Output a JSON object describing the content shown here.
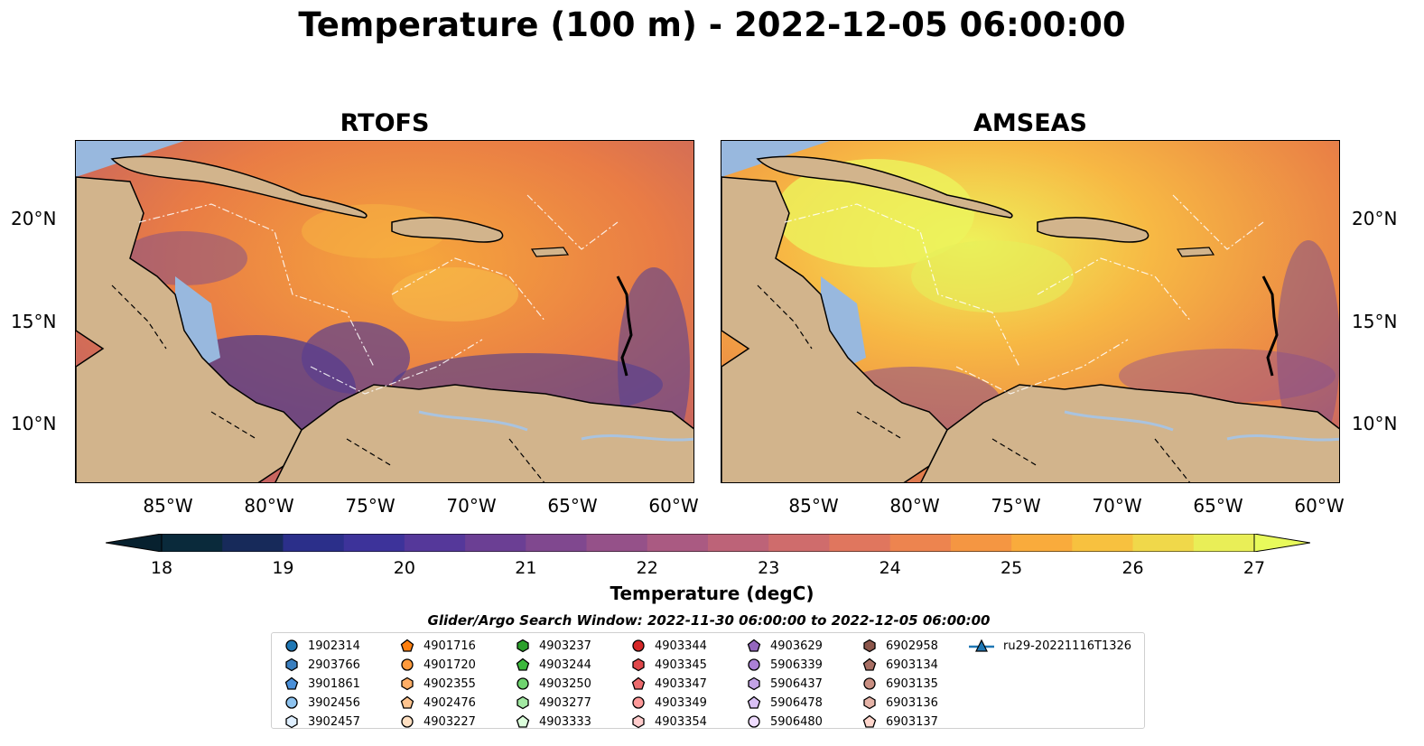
{
  "title": "Temperature (100 m) - 2022-12-05 06:00:00",
  "panels": {
    "left_title": "RTOFS",
    "right_title": "AMSEAS"
  },
  "axes": {
    "lat_labels": [
      "20°N",
      "15°N",
      "10°N"
    ],
    "lon_labels": [
      "85°W",
      "80°W",
      "75°W",
      "70°W",
      "65°W",
      "60°W"
    ]
  },
  "colorbar": {
    "label": "Temperature (degC)",
    "ticks": [
      "18",
      "19",
      "20",
      "21",
      "22",
      "23",
      "24",
      "25",
      "26",
      "27"
    ],
    "range": [
      18,
      27
    ],
    "colormap": "thermal",
    "extend": "both"
  },
  "legend": {
    "title": "Glider/Argo Search Window: 2022-11-30 06:00:00 to 2022-12-05 06:00:00",
    "items": [
      {
        "label": "1902314",
        "shape": "circle",
        "color": "#1f77b4"
      },
      {
        "label": "2903766",
        "shape": "hexagon",
        "color": "#3a7fbf"
      },
      {
        "label": "3901861",
        "shape": "pentagon",
        "color": "#4a90d9"
      },
      {
        "label": "3902456",
        "shape": "circle",
        "color": "#8ec3ef"
      },
      {
        "label": "3902457",
        "shape": "hexagon",
        "color": "#dfefff"
      },
      {
        "label": "4901716",
        "shape": "pentagon",
        "color": "#ff7f0e"
      },
      {
        "label": "4901720",
        "shape": "circle",
        "color": "#ff9a3c"
      },
      {
        "label": "4902355",
        "shape": "hexagon",
        "color": "#ffae66"
      },
      {
        "label": "4902476",
        "shape": "pentagon",
        "color": "#ffc48f"
      },
      {
        "label": "4903227",
        "shape": "circle",
        "color": "#ffe0c2"
      },
      {
        "label": "4903237",
        "shape": "hexagon",
        "color": "#2ca02c"
      },
      {
        "label": "4903244",
        "shape": "pentagon",
        "color": "#3cb83c"
      },
      {
        "label": "4903250",
        "shape": "circle",
        "color": "#6fd36f"
      },
      {
        "label": "4903277",
        "shape": "hexagon",
        "color": "#a2e8a2"
      },
      {
        "label": "4903333",
        "shape": "pentagon",
        "color": "#dcffdc"
      },
      {
        "label": "4903344",
        "shape": "circle",
        "color": "#d62728"
      },
      {
        "label": "4903345",
        "shape": "hexagon",
        "color": "#e0474a"
      },
      {
        "label": "4903347",
        "shape": "pentagon",
        "color": "#ec6b6d"
      },
      {
        "label": "4903349",
        "shape": "circle",
        "color": "#ff9a9a"
      },
      {
        "label": "4903354",
        "shape": "hexagon",
        "color": "#ffcccc"
      },
      {
        "label": "4903629",
        "shape": "pentagon",
        "color": "#9467bd"
      },
      {
        "label": "5906339",
        "shape": "circle",
        "color": "#ab80d6"
      },
      {
        "label": "5906437",
        "shape": "hexagon",
        "color": "#c3a3e6"
      },
      {
        "label": "5906478",
        "shape": "pentagon",
        "color": "#d9c0f5"
      },
      {
        "label": "5906480",
        "shape": "circle",
        "color": "#efdcff"
      },
      {
        "label": "6902958",
        "shape": "hexagon",
        "color": "#8c564b"
      },
      {
        "label": "6903134",
        "shape": "pentagon",
        "color": "#a86f64"
      },
      {
        "label": "6903135",
        "shape": "circle",
        "color": "#c98f82"
      },
      {
        "label": "6903136",
        "shape": "hexagon",
        "color": "#e5b3a7"
      },
      {
        "label": "6903137",
        "shape": "pentagon",
        "color": "#ffd6cc"
      },
      {
        "label": "ru29-20221116T1326",
        "shape": "triangle-line",
        "color": "#1f77b4"
      }
    ]
  }
}
